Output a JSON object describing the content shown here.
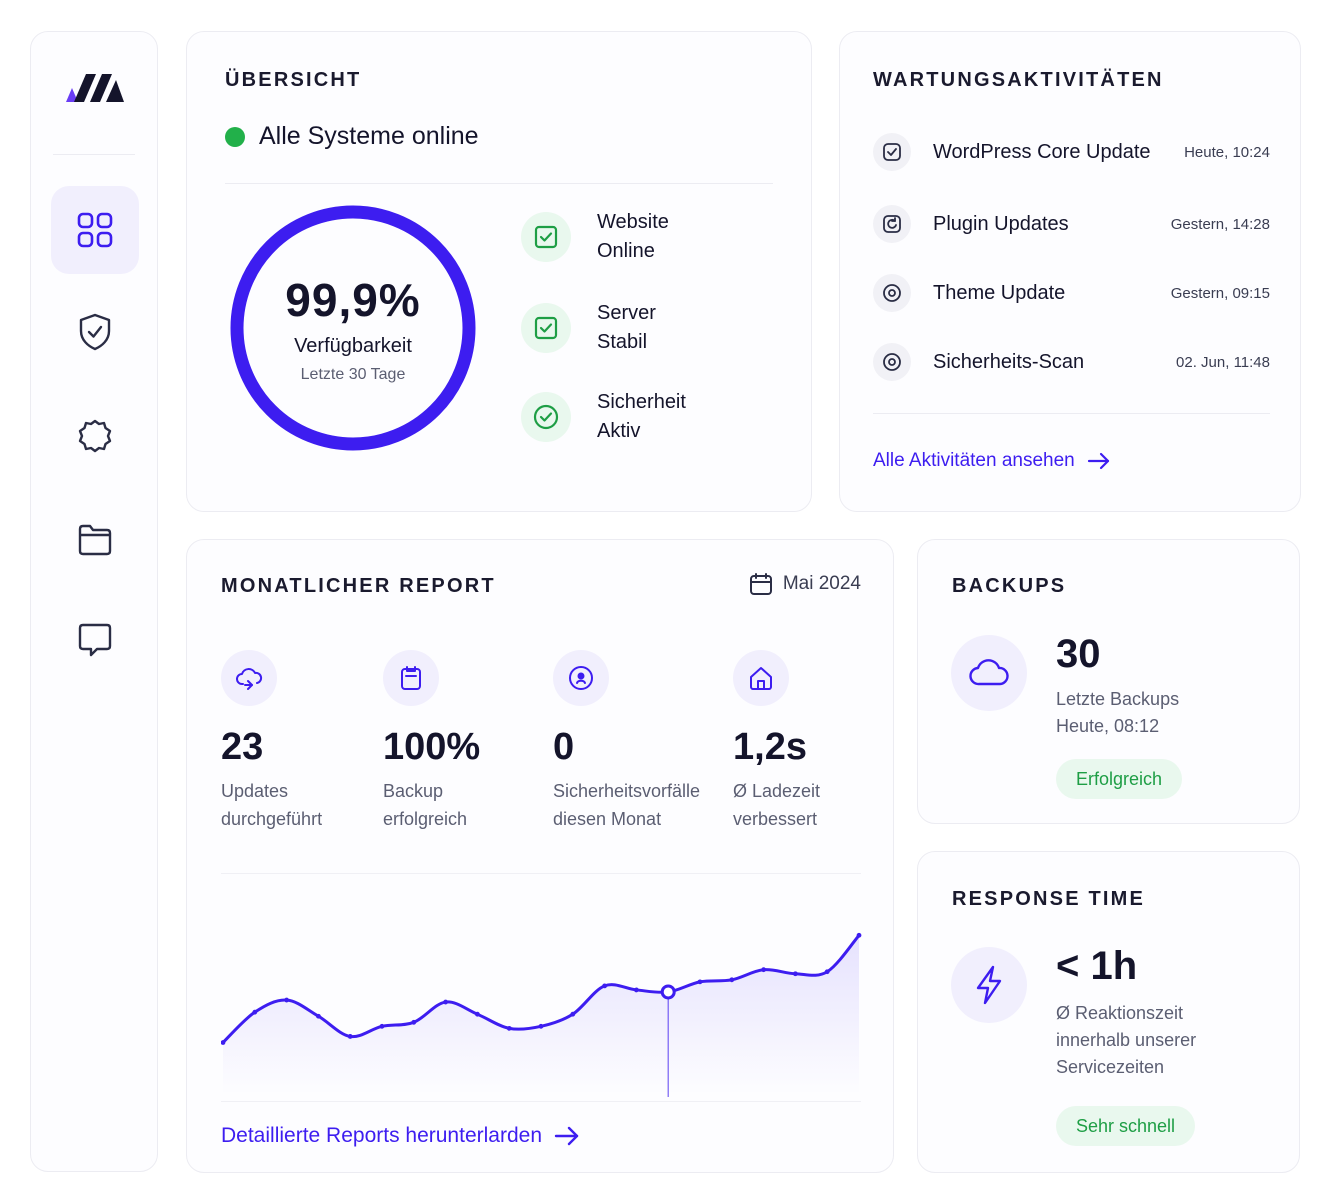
{
  "overview": {
    "title": "ÜBERSICHT",
    "status": "Alle Systeme online",
    "availability": {
      "value": "99,9%",
      "label": "Verfügbarkeit",
      "sub": "Letzte 30 Tage",
      "fraction": 0.999
    },
    "checks": [
      {
        "line1": "Website",
        "line2": "Online",
        "icon": "check-square-icon"
      },
      {
        "line1": "Server",
        "line2": "Stabil",
        "icon": "check-square-icon"
      },
      {
        "line1": "Sicherheit",
        "line2": "Aktiv",
        "icon": "check-circle-icon"
      }
    ]
  },
  "activities": {
    "title": "WARTUNGSAKTIVITÄTEN",
    "items": [
      {
        "title": "WordPress Core Update",
        "time": "Heute, 10:24"
      },
      {
        "title": "Plugin Updates",
        "time": "Gestern, 14:28"
      },
      {
        "title": "Theme Update",
        "time": "Gestern, 09:15"
      },
      {
        "title": "Sicherheits-Scan",
        "time": "02. Jun, 11:48"
      }
    ],
    "link": "Alle Aktivitäten ansehen"
  },
  "report": {
    "title": "MONATLICHER REPORT",
    "date": "Mai 2024",
    "stats": [
      {
        "value": "23",
        "line1": "Updates",
        "line2": "durchgeführt",
        "icon": "cloud-sync-icon"
      },
      {
        "value": "100%",
        "line1": "Backup",
        "line2": "erfolgreich",
        "icon": "clipboard-icon"
      },
      {
        "value": "0",
        "line1": "Sicherheitsvorfälle",
        "line2": "diesen Monat",
        "icon": "shield-person-icon"
      },
      {
        "value": "1,2s",
        "line1": "Ø Ladezeit",
        "line2": "verbessert",
        "icon": "home-icon"
      }
    ],
    "link": "Detaillierte Reports herunterlarden"
  },
  "chart_data": {
    "type": "line",
    "x": [
      0,
      1,
      2,
      3,
      4,
      5,
      6,
      7,
      8,
      9,
      10,
      11,
      12,
      13,
      14,
      15,
      16,
      17,
      18,
      19,
      20
    ],
    "values": [
      22,
      37,
      43,
      35,
      25,
      30,
      32,
      42,
      36,
      29,
      30,
      36,
      50,
      48,
      47,
      52,
      53,
      58,
      56,
      57,
      75
    ],
    "highlight_index": 14,
    "ylim": [
      0,
      90
    ],
    "grid": false,
    "color": "#3d1df0"
  },
  "backups": {
    "title": "BACKUPS",
    "value": "30",
    "line1": "Letzte Backups",
    "line2": "Heute, 08:12",
    "status": "Erfolgreich"
  },
  "response": {
    "title": "RESPONSE TIME",
    "value": "< 1h",
    "line1": "Ø Reaktionszeit",
    "line2": "innerhalb unserer",
    "line3": "Servicezeiten",
    "status": "Sehr schnell"
  },
  "colors": {
    "accent": "#3d1df0",
    "success": "#22b04a",
    "success_bg": "#e9f8ee",
    "accent_bg": "#f1effd"
  }
}
